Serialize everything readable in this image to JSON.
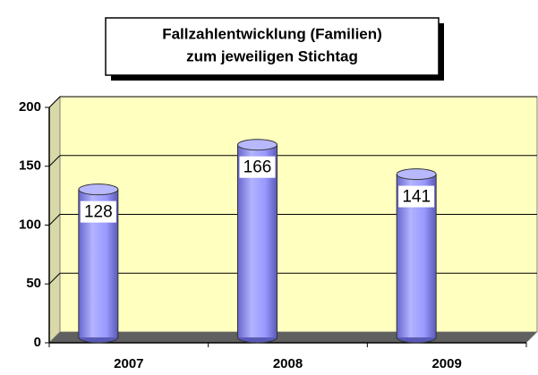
{
  "chart_data": {
    "type": "bar",
    "title": [
      "Fallzahlentwicklung (Familien)",
      "zum jeweiligen Stichtag"
    ],
    "categories": [
      "2007",
      "2008",
      "2009"
    ],
    "values": [
      128,
      166,
      141
    ],
    "color": "#9999ff",
    "ylim": [
      0,
      200
    ],
    "yticks": [
      0,
      50,
      100,
      150,
      200
    ],
    "grid": true
  }
}
